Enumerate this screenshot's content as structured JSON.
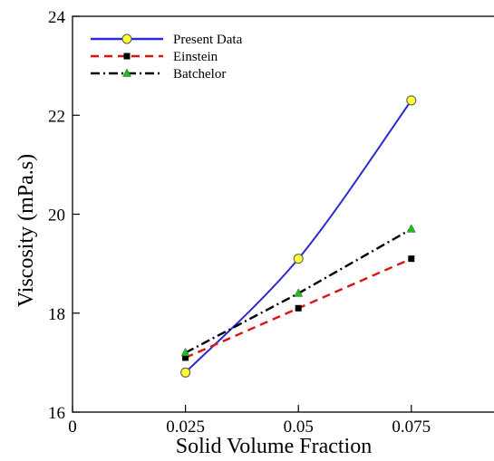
{
  "chart_data": {
    "type": "line",
    "xlabel": "Solid Volume Fraction",
    "ylabel": "Viscosity (mPa.s)",
    "xlim": [
      0,
      0.0935
    ],
    "ylim": [
      16,
      24
    ],
    "x_ticks": [
      0,
      0.025,
      0.05,
      0.075
    ],
    "x_tick_labels": [
      "0",
      "0.025",
      "0.05",
      "0.075"
    ],
    "y_ticks": [
      16,
      18,
      20,
      22,
      24
    ],
    "y_tick_labels": [
      "16",
      "18",
      "20",
      "22",
      "24"
    ],
    "grid": false,
    "legend_position": "top-left",
    "x": [
      0.025,
      0.05,
      0.075
    ],
    "series": [
      {
        "name": "Present Data",
        "values": [
          16.8,
          19.1,
          22.3
        ],
        "line_color": "#2b2bd6",
        "line_style": "solid",
        "smooth": true,
        "marker": "circle",
        "marker_color": "#ffff33"
      },
      {
        "name": "Einstein",
        "values": [
          17.1,
          18.1,
          19.1
        ],
        "line_color": "#dd1111",
        "line_style": "dashed",
        "smooth": false,
        "marker": "square",
        "marker_color": "#000000"
      },
      {
        "name": "Batchelor",
        "values": [
          17.2,
          18.4,
          19.7
        ],
        "line_color": "#000000",
        "line_style": "dashdot",
        "smooth": false,
        "marker": "triangle",
        "marker_color": "#22bb22"
      }
    ]
  }
}
